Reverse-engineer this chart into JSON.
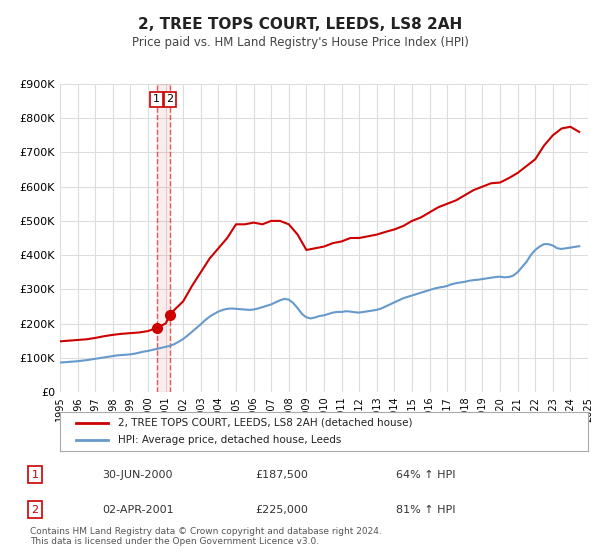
{
  "title": "2, TREE TOPS COURT, LEEDS, LS8 2AH",
  "subtitle": "Price paid vs. HM Land Registry's House Price Index (HPI)",
  "xlabel": "",
  "ylabel": "",
  "bg_color": "#ffffff",
  "grid_color": "#dddddd",
  "property_color": "#cc0000",
  "hpi_color": "#6699cc",
  "transaction_color": "#cc0000",
  "ylim": [
    0,
    900000
  ],
  "yticks": [
    0,
    100000,
    200000,
    300000,
    400000,
    500000,
    600000,
    700000,
    800000,
    900000
  ],
  "ytick_labels": [
    "£0",
    "£100K",
    "£200K",
    "£300K",
    "£400K",
    "£500K",
    "£600K",
    "£700K",
    "£800K",
    "£900K"
  ],
  "legend_property": "2, TREE TOPS COURT, LEEDS, LS8 2AH (detached house)",
  "legend_hpi": "HPI: Average price, detached house, Leeds",
  "transactions": [
    {
      "num": 1,
      "date": "30-JUN-2000",
      "date_val": 2000.49,
      "price": 187500,
      "pct": "64%",
      "direction": "↑"
    },
    {
      "num": 2,
      "date": "02-APR-2001",
      "date_val": 2001.25,
      "price": 225000,
      "pct": "81%",
      "direction": "↑"
    }
  ],
  "vline_x": 2000.49,
  "footnote": "Contains HM Land Registry data © Crown copyright and database right 2024.\nThis data is licensed under the Open Government Licence v3.0.",
  "hpi_data": {
    "x": [
      1995.0,
      1995.25,
      1995.5,
      1995.75,
      1996.0,
      1996.25,
      1996.5,
      1996.75,
      1997.0,
      1997.25,
      1997.5,
      1997.75,
      1998.0,
      1998.25,
      1998.5,
      1998.75,
      1999.0,
      1999.25,
      1999.5,
      1999.75,
      2000.0,
      2000.25,
      2000.5,
      2000.75,
      2001.0,
      2001.25,
      2001.5,
      2001.75,
      2002.0,
      2002.25,
      2002.5,
      2002.75,
      2003.0,
      2003.25,
      2003.5,
      2003.75,
      2004.0,
      2004.25,
      2004.5,
      2004.75,
      2005.0,
      2005.25,
      2005.5,
      2005.75,
      2006.0,
      2006.25,
      2006.5,
      2006.75,
      2007.0,
      2007.25,
      2007.5,
      2007.75,
      2008.0,
      2008.25,
      2008.5,
      2008.75,
      2009.0,
      2009.25,
      2009.5,
      2009.75,
      2010.0,
      2010.25,
      2010.5,
      2010.75,
      2011.0,
      2011.25,
      2011.5,
      2011.75,
      2012.0,
      2012.25,
      2012.5,
      2012.75,
      2013.0,
      2013.25,
      2013.5,
      2013.75,
      2014.0,
      2014.25,
      2014.5,
      2014.75,
      2015.0,
      2015.25,
      2015.5,
      2015.75,
      2016.0,
      2016.25,
      2016.5,
      2016.75,
      2017.0,
      2017.25,
      2017.5,
      2017.75,
      2018.0,
      2018.25,
      2018.5,
      2018.75,
      2019.0,
      2019.25,
      2019.5,
      2019.75,
      2020.0,
      2020.25,
      2020.5,
      2020.75,
      2021.0,
      2021.25,
      2021.5,
      2021.75,
      2022.0,
      2022.25,
      2022.5,
      2022.75,
      2023.0,
      2023.25,
      2023.5,
      2023.75,
      2024.0,
      2024.25,
      2024.5
    ],
    "y": [
      86000,
      87000,
      88000,
      89000,
      90000,
      91500,
      93000,
      95000,
      97000,
      99000,
      101000,
      103000,
      105000,
      107000,
      108000,
      109000,
      110000,
      112000,
      115000,
      118000,
      120000,
      123000,
      126000,
      129000,
      132000,
      135000,
      140000,
      147000,
      155000,
      165000,
      176000,
      187000,
      198000,
      210000,
      220000,
      228000,
      235000,
      240000,
      243000,
      244000,
      243000,
      242000,
      241000,
      240000,
      241000,
      244000,
      248000,
      252000,
      256000,
      262000,
      268000,
      272000,
      270000,
      260000,
      245000,
      228000,
      218000,
      215000,
      218000,
      222000,
      224000,
      228000,
      232000,
      234000,
      234000,
      236000,
      235000,
      233000,
      232000,
      234000,
      236000,
      238000,
      240000,
      244000,
      250000,
      256000,
      262000,
      268000,
      274000,
      278000,
      282000,
      286000,
      290000,
      294000,
      298000,
      302000,
      305000,
      307000,
      310000,
      315000,
      318000,
      320000,
      322000,
      325000,
      327000,
      328000,
      330000,
      332000,
      334000,
      336000,
      337000,
      335000,
      336000,
      340000,
      350000,
      365000,
      380000,
      400000,
      415000,
      425000,
      432000,
      432000,
      428000,
      420000,
      418000,
      420000,
      422000,
      424000,
      426000
    ]
  },
  "property_data": {
    "x": [
      1995.0,
      1995.5,
      1996.0,
      1996.5,
      1997.0,
      1997.5,
      1998.0,
      1998.5,
      1999.0,
      1999.5,
      2000.0,
      2000.49,
      2001.0,
      2001.25,
      2001.5,
      2002.0,
      2002.5,
      2003.0,
      2003.5,
      2004.0,
      2004.5,
      2005.0,
      2005.5,
      2006.0,
      2006.5,
      2007.0,
      2007.5,
      2008.0,
      2008.5,
      2009.0,
      2009.5,
      2010.0,
      2010.5,
      2011.0,
      2011.5,
      2012.0,
      2012.5,
      2013.0,
      2013.5,
      2014.0,
      2014.5,
      2015.0,
      2015.5,
      2016.0,
      2016.5,
      2017.0,
      2017.5,
      2018.0,
      2018.5,
      2019.0,
      2019.5,
      2020.0,
      2020.5,
      2021.0,
      2021.5,
      2022.0,
      2022.5,
      2023.0,
      2023.5,
      2024.0,
      2024.5
    ],
    "y": [
      148000,
      150000,
      152000,
      154000,
      158000,
      163000,
      167000,
      170000,
      172000,
      174000,
      178000,
      187500,
      200000,
      225000,
      240000,
      265000,
      310000,
      350000,
      390000,
      420000,
      450000,
      490000,
      490000,
      495000,
      490000,
      500000,
      500000,
      490000,
      460000,
      415000,
      420000,
      425000,
      435000,
      440000,
      450000,
      450000,
      455000,
      460000,
      468000,
      475000,
      485000,
      500000,
      510000,
      525000,
      540000,
      550000,
      560000,
      575000,
      590000,
      600000,
      610000,
      612000,
      625000,
      640000,
      660000,
      680000,
      720000,
      750000,
      770000,
      775000,
      760000
    ]
  }
}
